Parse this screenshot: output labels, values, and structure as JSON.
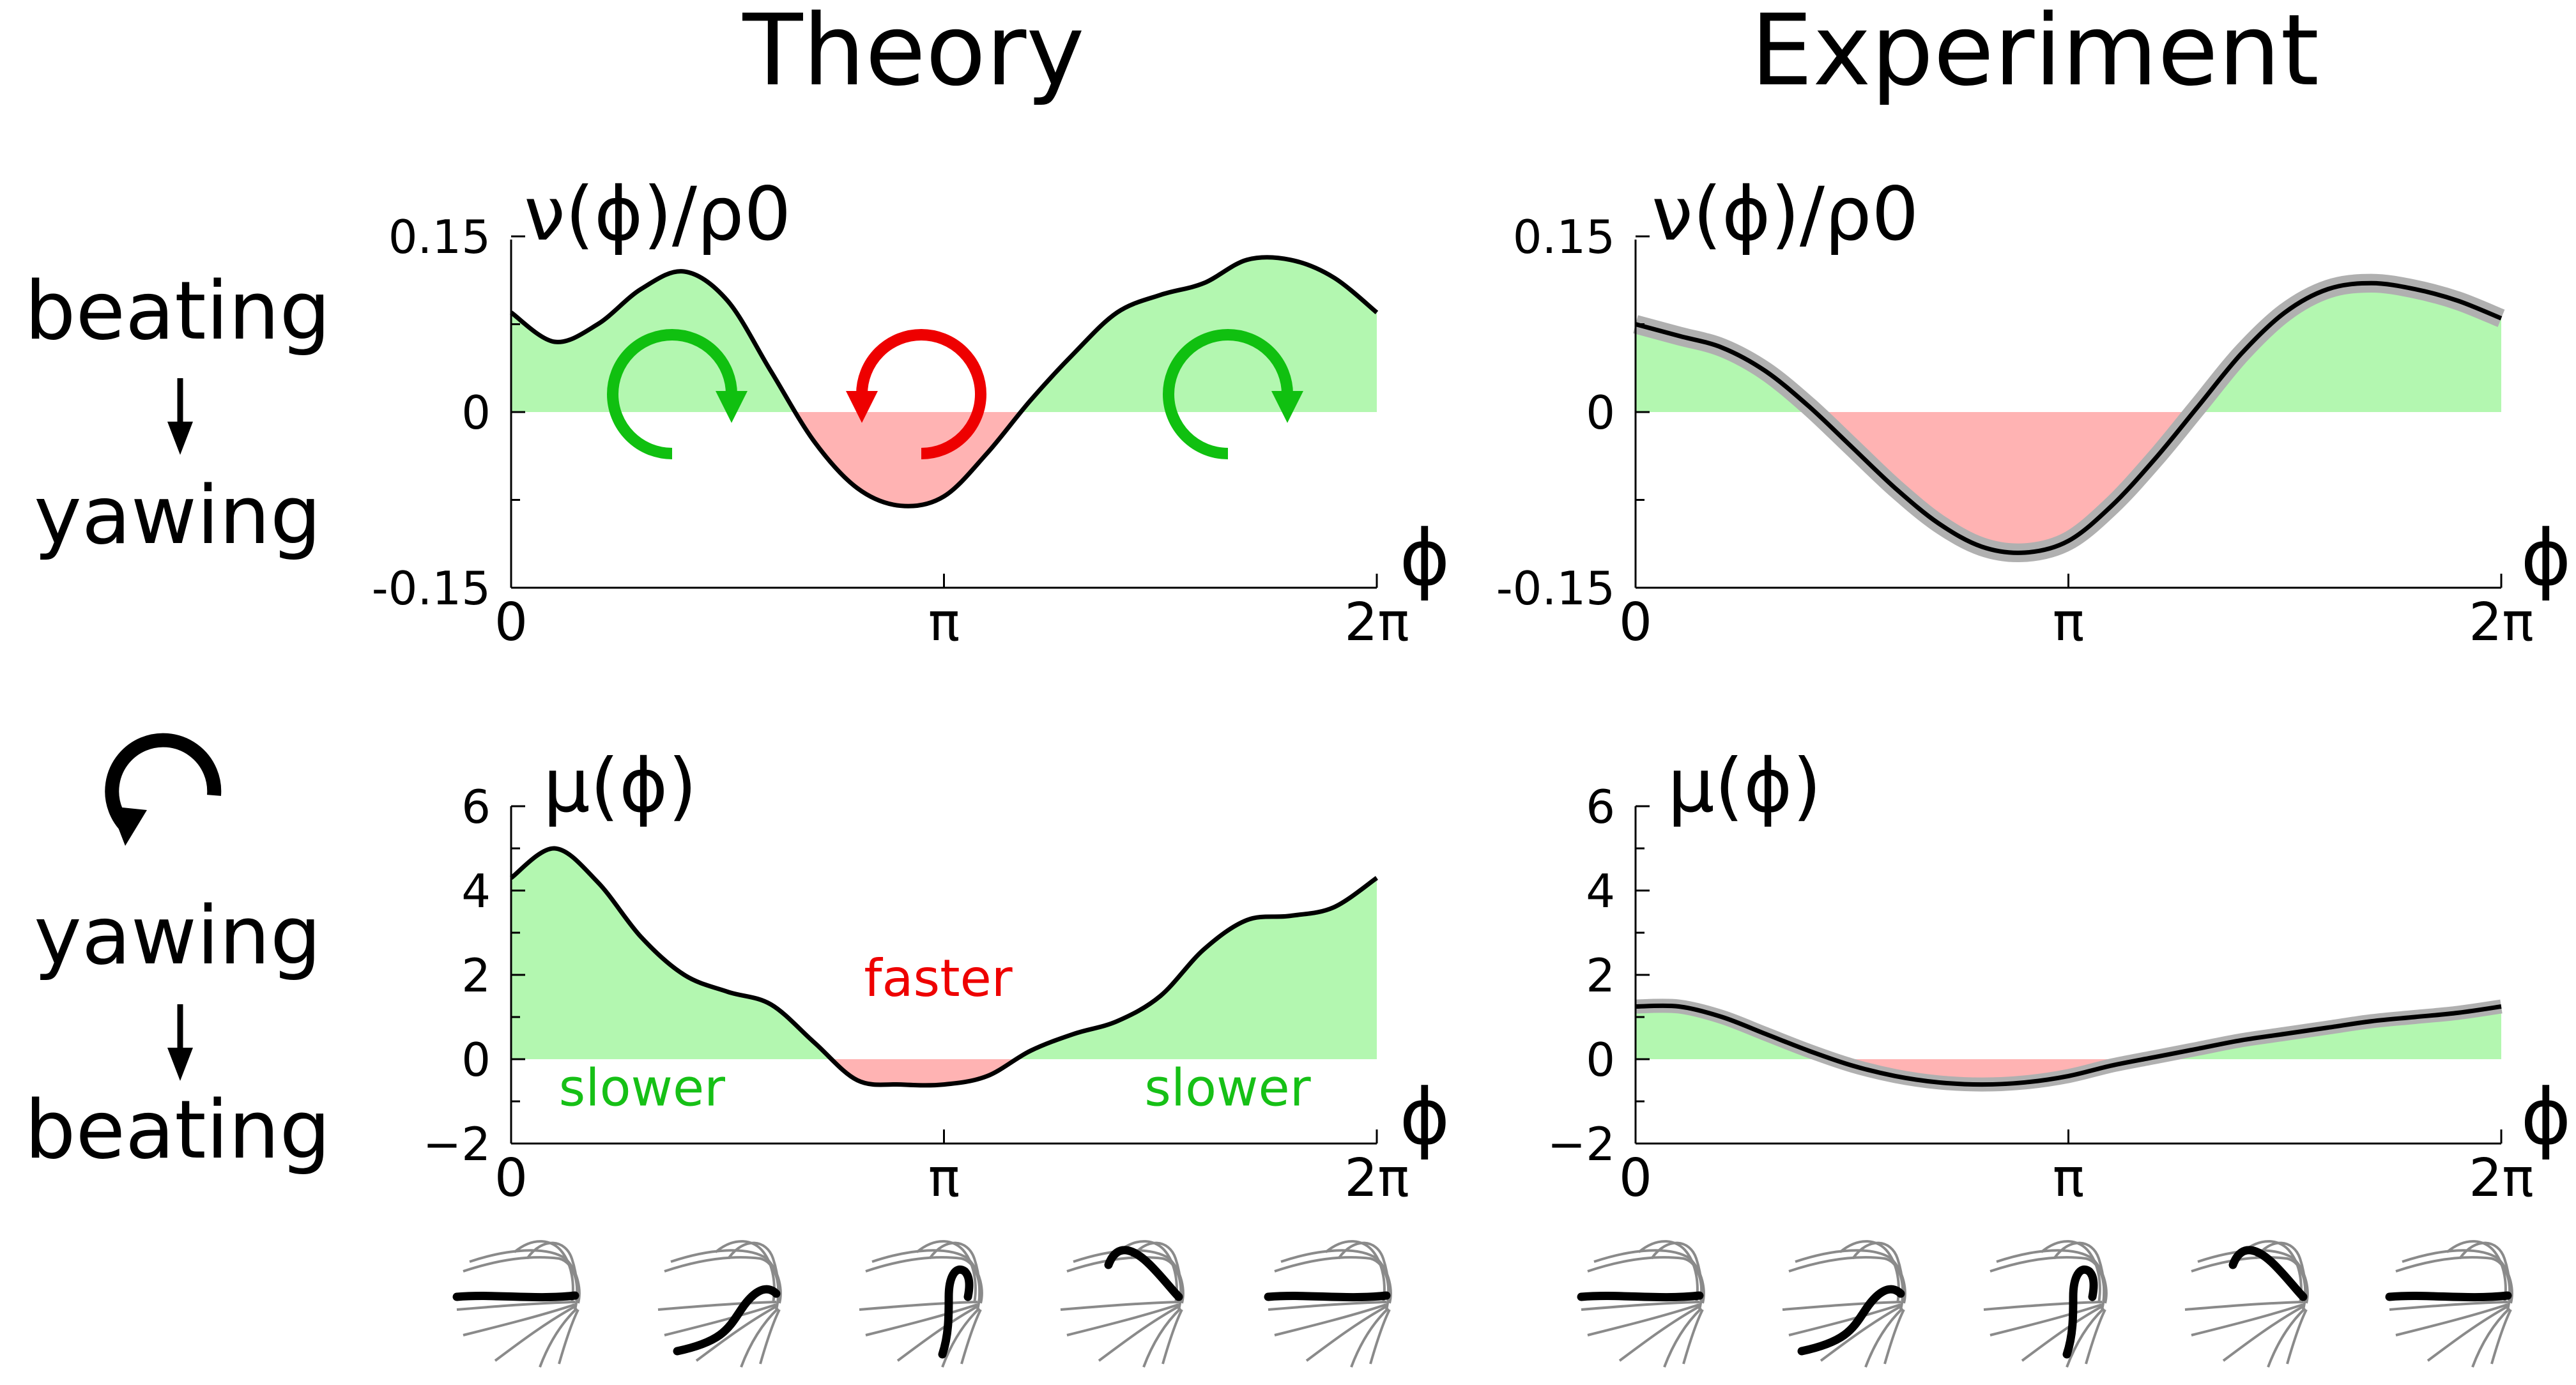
{
  "headers": {
    "theory": "Theory",
    "experiment": "Experiment"
  },
  "row_labels": {
    "top": [
      "beating",
      "yawing"
    ],
    "bottom": [
      "yawing",
      "beating"
    ]
  },
  "colors": {
    "positive_fill": "#b3f7b0",
    "negative_fill": "#ffb3b3",
    "curve": "#000000",
    "band": "#b0b0b0",
    "green_arrow": "#10c010",
    "red_arrow": "#ee0000",
    "green_text": "#16c016",
    "red_text": "#ee0000",
    "flagellum_gray": "#8a8a8a"
  },
  "icons": {
    "cw_green": "rotate-clockwise-icon",
    "ccw_red": "rotate-counterclockwise-icon",
    "yaw_black": "rotate-counterclockwise-icon",
    "arrow_down": "arrow-down-icon",
    "flagellum": "flagellum-waveform-icon"
  },
  "chart_data": [
    {
      "id": "theory-nu",
      "type": "area",
      "ylabel": "ν(ϕ)/ρ0",
      "xlabel": "ϕ",
      "ylim": [
        -0.15,
        0.15
      ],
      "xlim": [
        0,
        6.2832
      ],
      "y_ticks": [
        {
          "v": 0.15,
          "label": "0.15"
        },
        {
          "v": 0,
          "label": "0"
        },
        {
          "v": -0.15,
          "label": "-0.15"
        }
      ],
      "x_ticks": [
        {
          "v": 0,
          "label": "0"
        },
        {
          "v": 3.1416,
          "label": "π"
        },
        {
          "v": 6.2832,
          "label": "2π"
        }
      ],
      "x": [
        0,
        0.3142,
        0.6283,
        0.9425,
        1.2566,
        1.5708,
        1.885,
        2.1991,
        2.5133,
        2.8274,
        3.1416,
        3.4558,
        3.7699,
        4.0841,
        4.3982,
        4.7124,
        5.0265,
        5.3407,
        5.6549,
        5.969,
        6.2832
      ],
      "y": [
        0.085,
        0.06,
        0.075,
        0.105,
        0.12,
        0.095,
        0.035,
        -0.025,
        -0.065,
        -0.08,
        -0.072,
        -0.035,
        0.01,
        0.05,
        0.085,
        0.1,
        0.11,
        0.13,
        0.13,
        0.115,
        0.085
      ],
      "annotations": []
    },
    {
      "id": "experiment-nu",
      "type": "area",
      "ylabel": "ν(ϕ)/ρ0",
      "xlabel": "ϕ",
      "ylim": [
        -0.15,
        0.15
      ],
      "xlim": [
        0,
        6.2832
      ],
      "y_ticks": [
        {
          "v": 0.15,
          "label": "0.15"
        },
        {
          "v": 0,
          "label": "0"
        },
        {
          "v": -0.15,
          "label": "-0.15"
        }
      ],
      "x_ticks": [
        {
          "v": 0,
          "label": "0"
        },
        {
          "v": 3.1416,
          "label": "π"
        },
        {
          "v": 6.2832,
          "label": "2π"
        }
      ],
      "x": [
        0,
        0.3142,
        0.6283,
        0.9425,
        1.2566,
        1.5708,
        1.885,
        2.1991,
        2.5133,
        2.8274,
        3.1416,
        3.4558,
        3.7699,
        4.0841,
        4.3982,
        4.7124,
        5.0265,
        5.3407,
        5.6549,
        5.969,
        6.2832
      ],
      "y": [
        0.075,
        0.065,
        0.055,
        0.035,
        0.005,
        -0.03,
        -0.065,
        -0.095,
        -0.115,
        -0.12,
        -0.11,
        -0.08,
        -0.04,
        0.005,
        0.05,
        0.085,
        0.105,
        0.11,
        0.105,
        0.095,
        0.08
      ],
      "band": 0.008,
      "annotations": []
    },
    {
      "id": "theory-mu",
      "type": "area",
      "ylabel": "μ(ϕ)",
      "xlabel": "ϕ",
      "ylim": [
        -2,
        6
      ],
      "xlim": [
        0,
        6.2832
      ],
      "y_ticks": [
        {
          "v": 6,
          "label": "6"
        },
        {
          "v": 4,
          "label": "4"
        },
        {
          "v": 2,
          "label": "2"
        },
        {
          "v": 0,
          "label": "0"
        },
        {
          "v": -2,
          "label": "−2"
        }
      ],
      "x_ticks": [
        {
          "v": 0,
          "label": "0"
        },
        {
          "v": 3.1416,
          "label": "π"
        },
        {
          "v": 6.2832,
          "label": "2π"
        }
      ],
      "x": [
        0,
        0.3142,
        0.6283,
        0.9425,
        1.2566,
        1.5708,
        1.885,
        2.1991,
        2.5133,
        2.8274,
        3.1416,
        3.4558,
        3.7699,
        4.0841,
        4.3982,
        4.7124,
        5.0265,
        5.3407,
        5.6549,
        5.969,
        6.2832
      ],
      "y": [
        4.3,
        5.0,
        4.2,
        2.9,
        2.0,
        1.6,
        1.3,
        0.4,
        -0.5,
        -0.6,
        -0.6,
        -0.4,
        0.2,
        0.6,
        0.9,
        1.5,
        2.6,
        3.3,
        3.4,
        3.6,
        4.3
      ],
      "annotations": [
        {
          "text": "slower",
          "x": 0.95,
          "y": -1.1,
          "color": "green"
        },
        {
          "text": "faster",
          "x": 3.1,
          "y": 1.5,
          "color": "red"
        },
        {
          "text": "slower",
          "x": 5.2,
          "y": -1.1,
          "color": "green"
        }
      ]
    },
    {
      "id": "experiment-mu",
      "type": "area",
      "ylabel": "μ(ϕ)",
      "xlabel": "ϕ",
      "ylim": [
        -2,
        6
      ],
      "xlim": [
        0,
        6.2832
      ],
      "y_ticks": [
        {
          "v": 6,
          "label": "6"
        },
        {
          "v": 4,
          "label": "4"
        },
        {
          "v": 2,
          "label": "2"
        },
        {
          "v": 0,
          "label": "0"
        },
        {
          "v": -2,
          "label": "−2"
        }
      ],
      "x_ticks": [
        {
          "v": 0,
          "label": "0"
        },
        {
          "v": 3.1416,
          "label": "π"
        },
        {
          "v": 6.2832,
          "label": "2π"
        }
      ],
      "x": [
        0,
        0.3142,
        0.6283,
        0.9425,
        1.2566,
        1.5708,
        1.885,
        2.1991,
        2.5133,
        2.8274,
        3.1416,
        3.4558,
        3.7699,
        4.0841,
        4.3982,
        4.7124,
        5.0265,
        5.3407,
        5.6549,
        5.969,
        6.2832
      ],
      "y": [
        1.25,
        1.25,
        1.0,
        0.6,
        0.2,
        -0.15,
        -0.4,
        -0.55,
        -0.6,
        -0.55,
        -0.4,
        -0.15,
        0.05,
        0.25,
        0.45,
        0.6,
        0.75,
        0.9,
        1.0,
        1.1,
        1.25
      ],
      "band": 0.12,
      "annotations": []
    }
  ]
}
